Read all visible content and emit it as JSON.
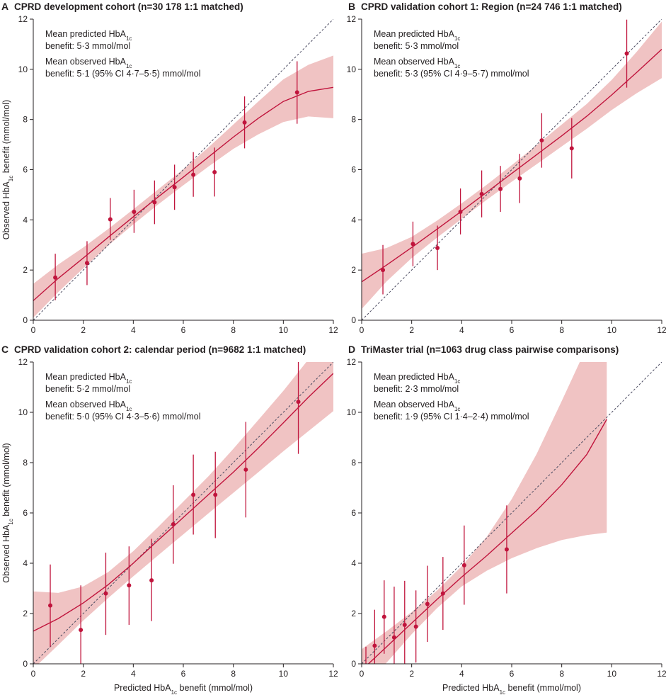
{
  "figure": {
    "y_axis_label_prefix": "Observed HbA",
    "y_axis_label_sub": "1c",
    "y_axis_label_suffix": " benefit (mmol/mol)",
    "x_axis_label_prefix": "Predicted HbA",
    "x_axis_label_sub": "1c",
    "x_axis_label_suffix": " benefit (mmol/mol)"
  },
  "chart_data": [
    {
      "type": "scatter",
      "letter": "A",
      "title": "CPRD development cohort (n=30 178 1:1 matched)",
      "annotations": {
        "predicted_line1_prefix": "Mean predicted HbA",
        "predicted_line1_sub": "1c",
        "predicted_line2": "benefit: 5·3 mmol/mol",
        "observed_line1_prefix": "Mean observed HbA",
        "observed_line1_sub": "1c",
        "observed_line2": "benefit: 5·1 (95% CI 4·7–5·5) mmol/mol"
      },
      "xlim": [
        0,
        12
      ],
      "ylim": [
        0,
        12
      ],
      "xticks": [
        0,
        2,
        4,
        6,
        8,
        10,
        12
      ],
      "yticks": [
        0,
        2,
        4,
        6,
        8,
        10,
        12
      ],
      "points": [
        {
          "x": 0.88,
          "y": 1.7,
          "lower": 0.8,
          "upper": 2.65
        },
        {
          "x": 2.15,
          "y": 2.28,
          "lower": 1.4,
          "upper": 3.15
        },
        {
          "x": 3.08,
          "y": 4.02,
          "lower": 3.2,
          "upper": 4.87
        },
        {
          "x": 4.03,
          "y": 4.32,
          "lower": 3.48,
          "upper": 5.2
        },
        {
          "x": 4.85,
          "y": 4.7,
          "lower": 3.83,
          "upper": 5.57
        },
        {
          "x": 5.65,
          "y": 5.3,
          "lower": 4.4,
          "upper": 6.2
        },
        {
          "x": 6.4,
          "y": 5.8,
          "lower": 4.92,
          "upper": 6.7
        },
        {
          "x": 7.25,
          "y": 5.9,
          "lower": 4.93,
          "upper": 6.88
        },
        {
          "x": 8.45,
          "y": 7.88,
          "lower": 6.85,
          "upper": 8.92
        },
        {
          "x": 10.55,
          "y": 9.08,
          "lower": 7.83,
          "upper": 10.32
        }
      ],
      "fit": {
        "x": [
          0,
          1,
          2,
          3,
          4,
          5,
          6,
          7,
          8,
          9,
          10,
          11,
          12
        ],
        "y": [
          0.78,
          1.67,
          2.48,
          3.31,
          4.12,
          4.92,
          5.7,
          6.5,
          7.3,
          8.05,
          8.72,
          9.12,
          9.28
        ],
        "lower": [
          0.1,
          1.12,
          2.07,
          2.98,
          3.82,
          4.62,
          5.38,
          6.12,
          6.83,
          7.41,
          7.9,
          8.12,
          8.05
        ],
        "upper": [
          1.45,
          2.22,
          2.9,
          3.64,
          4.42,
          5.22,
          6.02,
          6.88,
          7.8,
          8.72,
          9.6,
          10.18,
          10.55
        ]
      }
    },
    {
      "type": "scatter",
      "letter": "B",
      "title": "CPRD validation cohort 1: Region (n=24 746 1:1 matched)",
      "annotations": {
        "predicted_line1_prefix": "Mean predicted HbA",
        "predicted_line1_sub": "1c",
        "predicted_line2": "benefit: 5·3 mmol/mol",
        "observed_line1_prefix": "Mean observed HbA",
        "observed_line1_sub": "1c",
        "observed_line2": "benefit: 5·3 (95% CI 4·9–5·7) mmol/mol"
      },
      "xlim": [
        0,
        12
      ],
      "ylim": [
        0,
        12
      ],
      "xticks": [
        0,
        2,
        4,
        6,
        8,
        10,
        12
      ],
      "yticks": [
        0,
        2,
        4,
        6,
        8,
        10,
        12
      ],
      "points": [
        {
          "x": 0.85,
          "y": 2.0,
          "lower": 1.03,
          "upper": 3.0
        },
        {
          "x": 2.05,
          "y": 3.04,
          "lower": 2.15,
          "upper": 3.93
        },
        {
          "x": 3.03,
          "y": 2.88,
          "lower": 2.0,
          "upper": 3.77
        },
        {
          "x": 3.95,
          "y": 4.32,
          "lower": 3.42,
          "upper": 5.25
        },
        {
          "x": 4.8,
          "y": 5.03,
          "lower": 4.1,
          "upper": 5.97
        },
        {
          "x": 5.55,
          "y": 5.23,
          "lower": 4.32,
          "upper": 6.15
        },
        {
          "x": 6.32,
          "y": 5.65,
          "lower": 4.67,
          "upper": 6.63
        },
        {
          "x": 7.2,
          "y": 7.17,
          "lower": 6.08,
          "upper": 8.25
        },
        {
          "x": 8.4,
          "y": 6.85,
          "lower": 5.65,
          "upper": 8.05
        },
        {
          "x": 10.6,
          "y": 10.63,
          "lower": 9.27,
          "upper": 11.98
        }
      ],
      "fit": {
        "x": [
          0,
          1,
          2,
          3,
          4,
          5,
          6,
          7,
          8,
          9,
          10,
          11,
          12
        ],
        "y": [
          1.53,
          2.2,
          2.9,
          3.62,
          4.35,
          5.1,
          5.85,
          6.6,
          7.35,
          8.13,
          8.98,
          9.88,
          10.8
        ],
        "lower": [
          0.45,
          1.55,
          2.48,
          3.28,
          4.04,
          4.8,
          5.52,
          6.22,
          6.93,
          7.63,
          8.38,
          9.05,
          9.65
        ],
        "upper": [
          2.65,
          2.88,
          3.32,
          3.96,
          4.66,
          5.4,
          6.18,
          6.98,
          7.8,
          8.62,
          9.58,
          10.7,
          11.9
        ]
      }
    },
    {
      "type": "scatter",
      "letter": "C",
      "title": "CPRD validation cohort 2: calendar period (n=9682 1:1 matched)",
      "annotations": {
        "predicted_line1_prefix": "Mean predicted HbA",
        "predicted_line1_sub": "1c",
        "predicted_line2": "benefit: 5·2 mmol/mol",
        "observed_line1_prefix": "Mean observed HbA",
        "observed_line1_sub": "1c",
        "observed_line2": "benefit: 5·0 (95% CI 4·3–5·6) mmol/mol"
      },
      "xlim": [
        0,
        12
      ],
      "ylim": [
        0,
        12
      ],
      "xticks": [
        0,
        2,
        4,
        6,
        8,
        10,
        12
      ],
      "yticks": [
        0,
        2,
        4,
        6,
        8,
        10,
        12
      ],
      "points": [
        {
          "x": 0.68,
          "y": 2.32,
          "lower": 0.68,
          "upper": 3.95
        },
        {
          "x": 1.9,
          "y": 1.35,
          "lower": -0.4,
          "upper": 3.12
        },
        {
          "x": 2.9,
          "y": 2.8,
          "lower": 1.15,
          "upper": 4.42
        },
        {
          "x": 3.83,
          "y": 3.12,
          "lower": 1.55,
          "upper": 4.67
        },
        {
          "x": 4.73,
          "y": 3.32,
          "lower": 1.7,
          "upper": 4.97
        },
        {
          "x": 5.6,
          "y": 5.55,
          "lower": 3.98,
          "upper": 7.1
        },
        {
          "x": 6.4,
          "y": 6.72,
          "lower": 5.14,
          "upper": 8.32
        },
        {
          "x": 7.28,
          "y": 6.72,
          "lower": 5.0,
          "upper": 8.43
        },
        {
          "x": 8.5,
          "y": 7.72,
          "lower": 5.82,
          "upper": 9.62
        },
        {
          "x": 10.6,
          "y": 10.42,
          "lower": 8.35,
          "upper": 12.6
        }
      ],
      "fit": {
        "x": [
          0,
          1,
          2,
          3,
          4,
          5,
          6,
          7,
          8,
          9,
          10,
          11,
          12
        ],
        "y": [
          1.3,
          1.8,
          2.42,
          3.15,
          4.0,
          4.92,
          5.82,
          6.72,
          7.62,
          8.58,
          9.58,
          10.6,
          11.55
        ],
        "lower": [
          -0.2,
          0.75,
          1.72,
          2.62,
          3.48,
          4.32,
          5.15,
          5.98,
          6.8,
          7.62,
          8.45,
          9.25,
          10.05
        ],
        "upper": [
          2.88,
          2.82,
          3.08,
          3.65,
          4.48,
          5.45,
          6.45,
          7.45,
          8.55,
          9.7,
          10.85,
          12.1,
          13.2
        ]
      }
    },
    {
      "type": "scatter",
      "letter": "D",
      "title": "TriMaster trial (n=1063 drug class pairwise comparisons)",
      "annotations": {
        "predicted_line1_prefix": "Mean predicted HbA",
        "predicted_line1_sub": "1c",
        "predicted_line2": "benefit: 2·3 mmol/mol",
        "observed_line1_prefix": "Mean observed HbA",
        "observed_line1_sub": "1c",
        "observed_line2": "benefit: 1·9 (95% CI 1·4–2·4) mmol/mol"
      },
      "xlim": [
        0,
        12
      ],
      "ylim": [
        0,
        12
      ],
      "xticks": [
        0,
        2,
        4,
        6,
        8,
        10,
        12
      ],
      "yticks": [
        0,
        2,
        4,
        6,
        8,
        10,
        12
      ],
      "points": [
        {
          "x": 0.17,
          "y": -0.45,
          "lower": -1.6,
          "upper": 0.68
        },
        {
          "x": 0.52,
          "y": 0.72,
          "lower": -0.7,
          "upper": 2.15
        },
        {
          "x": 0.9,
          "y": 1.87,
          "lower": 0.4,
          "upper": 3.32
        },
        {
          "x": 1.3,
          "y": 1.05,
          "lower": -0.97,
          "upper": 3.07
        },
        {
          "x": 1.72,
          "y": 1.55,
          "lower": -0.2,
          "upper": 3.3
        },
        {
          "x": 2.17,
          "y": 1.48,
          "lower": 0.05,
          "upper": 2.92
        },
        {
          "x": 2.63,
          "y": 2.38,
          "lower": 0.87,
          "upper": 3.9
        },
        {
          "x": 3.25,
          "y": 2.8,
          "lower": 1.35,
          "upper": 4.25
        },
        {
          "x": 4.1,
          "y": 3.92,
          "lower": 2.35,
          "upper": 5.5
        },
        {
          "x": 5.8,
          "y": 4.55,
          "lower": 2.8,
          "upper": 6.3
        }
      ],
      "fit": {
        "x": [
          0,
          1,
          2,
          3,
          4,
          5,
          6,
          7,
          8,
          9,
          9.8
        ],
        "y": [
          -0.25,
          0.68,
          1.62,
          2.55,
          3.45,
          4.3,
          5.2,
          6.1,
          7.12,
          8.32,
          9.72
        ],
        "lower": [
          -1.05,
          0.05,
          1.18,
          2.2,
          3.08,
          3.7,
          4.2,
          4.6,
          4.92,
          5.12,
          5.22
        ],
        "upper": [
          0.58,
          1.3,
          2.06,
          2.9,
          3.88,
          5.05,
          6.55,
          8.35,
          10.45,
          12.6,
          14.0
        ]
      }
    }
  ]
}
